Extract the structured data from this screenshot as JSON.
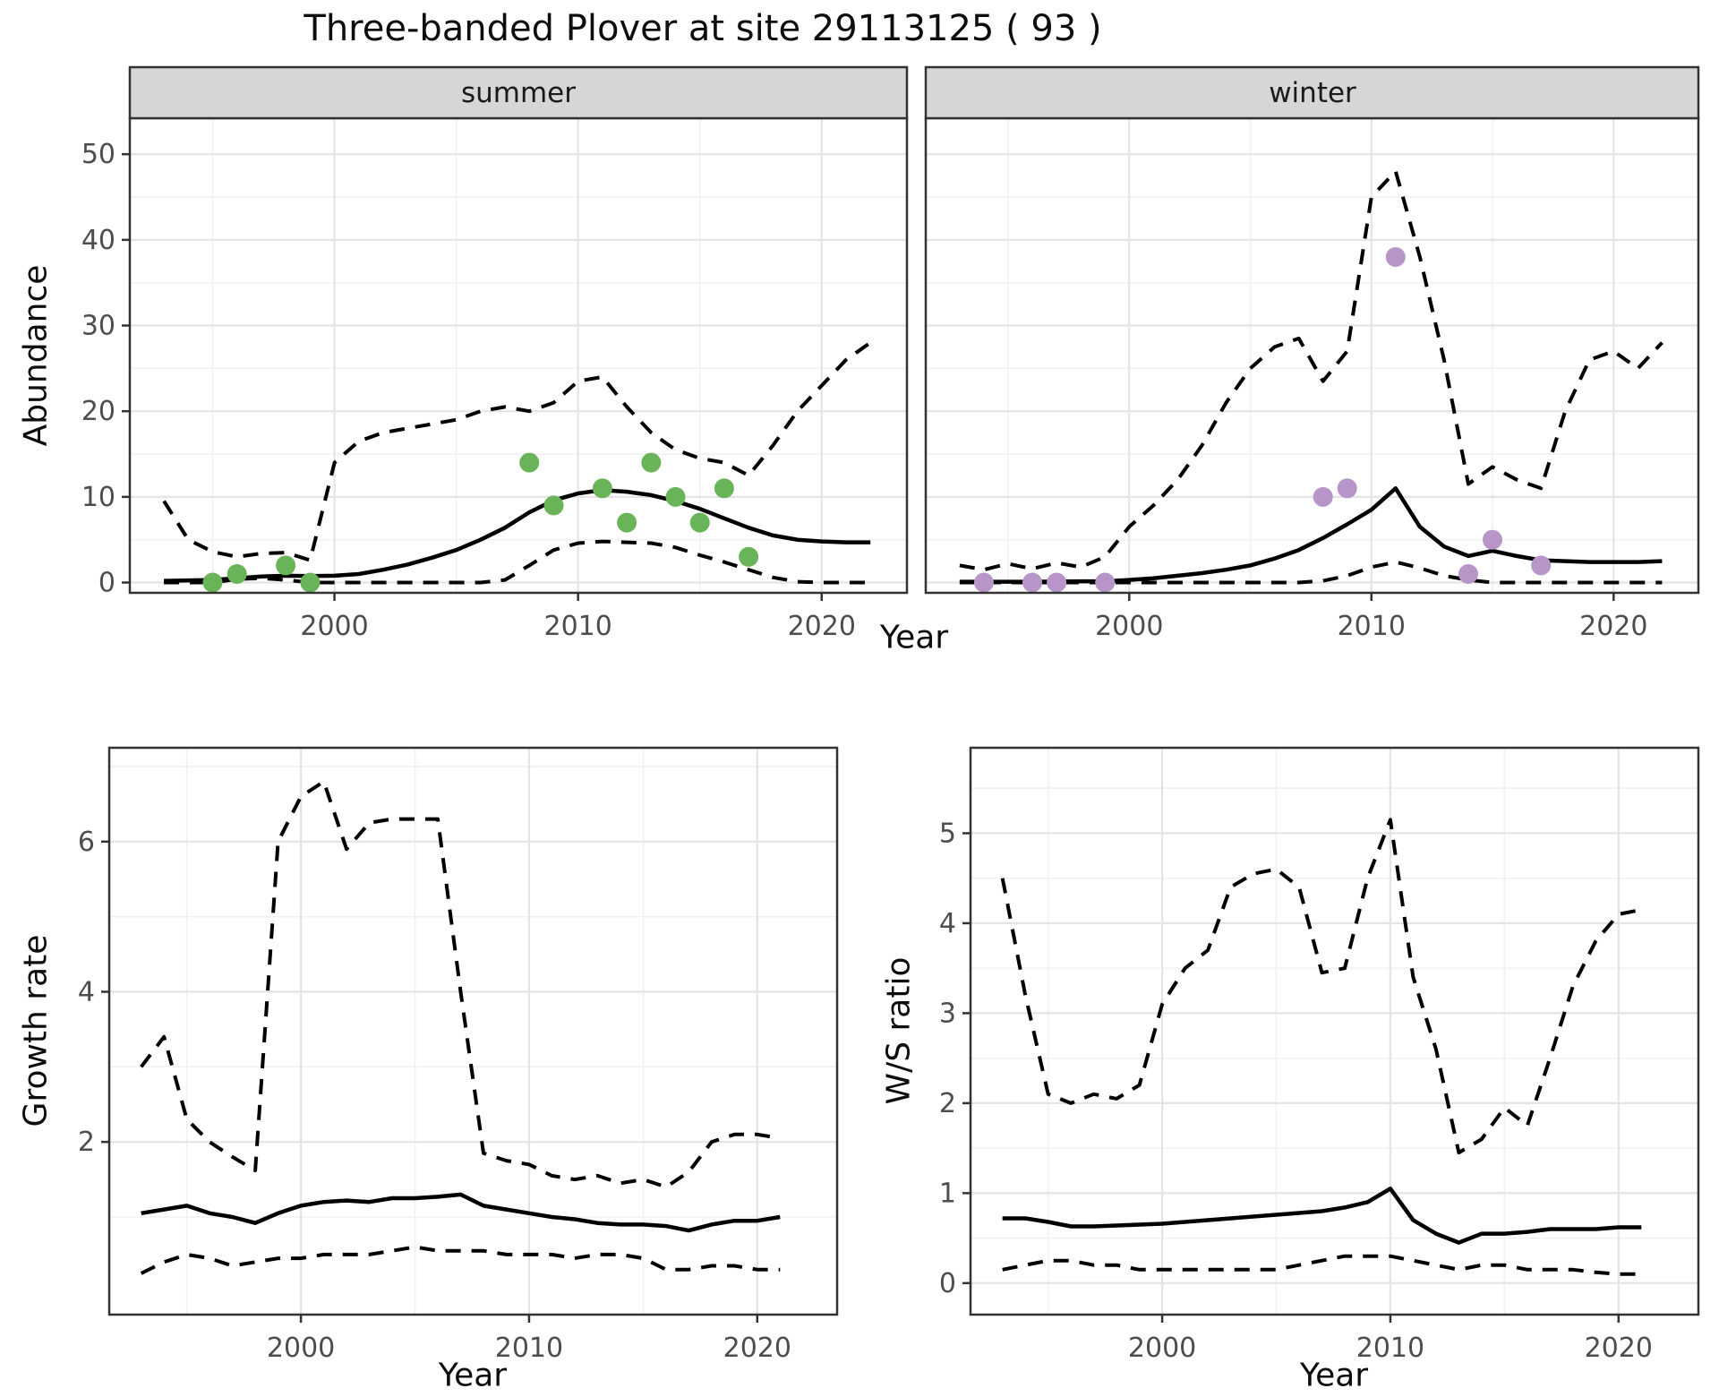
{
  "title": "Three-banded Plover at site 29113125 ( 93 )",
  "colors": {
    "summer_points": "#69b358",
    "winter_points": "#b795c8",
    "line": "#000000",
    "strip_fill": "#d6d6d6",
    "panel_border": "#333333",
    "grid_major": "#e4e4e4",
    "grid_minor": "#f1f1f1",
    "tick_text": "#4d4d4d"
  },
  "chart_data": [
    {
      "type": "line",
      "panel": "summer-abundance",
      "facet_label": "summer",
      "xlabel": "Year",
      "ylabel": "Abundance",
      "xlim": [
        1991.6,
        2023.5
      ],
      "ylim": [
        -1.2,
        54.2
      ],
      "xticks": [
        2000,
        2010,
        2020
      ],
      "yticks": [
        0,
        10,
        20,
        30,
        40,
        50
      ],
      "grid": true,
      "legend": "none",
      "x": [
        1993,
        1994,
        1995,
        1996,
        1997,
        1998,
        1999,
        2000,
        2001,
        2002,
        2003,
        2004,
        2005,
        2006,
        2007,
        2008,
        2009,
        2010,
        2011,
        2012,
        2013,
        2014,
        2015,
        2016,
        2017,
        2018,
        2019,
        2020,
        2021,
        2022
      ],
      "series": [
        {
          "name": "median",
          "style": "solid",
          "values": [
            0.2,
            0.25,
            0.3,
            0.5,
            0.7,
            0.8,
            0.75,
            0.8,
            1.0,
            1.5,
            2.1,
            2.9,
            3.8,
            5.0,
            6.4,
            8.2,
            9.6,
            10.4,
            10.8,
            10.6,
            10.2,
            9.5,
            8.6,
            7.5,
            6.4,
            5.5,
            5.0,
            4.8,
            4.7,
            4.7
          ]
        },
        {
          "name": "upper_ci",
          "style": "dashed",
          "values": [
            9.5,
            5.0,
            3.6,
            3.0,
            3.4,
            3.5,
            2.6,
            14.0,
            16.5,
            17.5,
            18.0,
            18.5,
            19.0,
            20.0,
            20.5,
            20.0,
            21.0,
            23.5,
            24.0,
            20.5,
            17.5,
            15.5,
            14.5,
            14.0,
            12.5,
            16.0,
            20.0,
            23.0,
            26.0,
            28.0
          ]
        },
        {
          "name": "lower_ci",
          "style": "dashed",
          "values": [
            0,
            0,
            0,
            0.4,
            0.5,
            0.3,
            0,
            0,
            0,
            0,
            0,
            0,
            0,
            0,
            0.3,
            2.0,
            3.8,
            4.6,
            4.8,
            4.7,
            4.6,
            4.1,
            3.2,
            2.4,
            1.5,
            0.6,
            0.1,
            0,
            0,
            0
          ]
        }
      ],
      "points": {
        "name": "observed-counts",
        "color": "#69b358",
        "x": [
          1995,
          1996,
          1998,
          1999,
          2008,
          2009,
          2011,
          2012,
          2013,
          2014,
          2015,
          2016,
          2017
        ],
        "y": [
          0,
          1,
          2,
          0,
          14,
          9,
          11,
          7,
          14,
          10,
          7,
          11,
          3
        ]
      }
    },
    {
      "type": "line",
      "panel": "winter-abundance",
      "facet_label": "winter",
      "xlabel": "Year",
      "ylabel": "Abundance",
      "xlim": [
        1991.6,
        2023.5
      ],
      "ylim": [
        -1.2,
        54.2
      ],
      "xticks": [
        2000,
        2010,
        2020
      ],
      "yticks": [
        0,
        10,
        20,
        30,
        40,
        50
      ],
      "grid": true,
      "legend": "none",
      "x": [
        1993,
        1994,
        1995,
        1996,
        1997,
        1998,
        1999,
        2000,
        2001,
        2002,
        2003,
        2004,
        2005,
        2006,
        2007,
        2008,
        2009,
        2010,
        2011,
        2012,
        2013,
        2014,
        2015,
        2016,
        2017,
        2018,
        2019,
        2020,
        2021,
        2022
      ],
      "series": [
        {
          "name": "median",
          "style": "solid",
          "values": [
            0.1,
            0.1,
            0.1,
            0.1,
            0.12,
            0.15,
            0.15,
            0.3,
            0.5,
            0.8,
            1.1,
            1.5,
            2.0,
            2.8,
            3.8,
            5.2,
            6.8,
            8.5,
            11.0,
            6.5,
            4.2,
            3.1,
            3.7,
            3.1,
            2.6,
            2.5,
            2.4,
            2.4,
            2.4,
            2.5
          ]
        },
        {
          "name": "upper_ci",
          "style": "dashed",
          "values": [
            2.0,
            1.5,
            2.2,
            1.6,
            2.3,
            1.8,
            3.0,
            6.5,
            9.0,
            12.0,
            16.0,
            21.0,
            25.0,
            27.5,
            28.5,
            23.5,
            27.0,
            45.0,
            48.0,
            38.0,
            26.0,
            11.5,
            13.5,
            12.0,
            11.0,
            20.0,
            26.0,
            27.0,
            25.0,
            28.0
          ]
        },
        {
          "name": "lower_ci",
          "style": "dashed",
          "values": [
            0,
            0,
            0,
            0,
            0,
            0,
            0,
            0,
            0,
            0,
            0,
            0,
            0,
            0,
            0,
            0.2,
            0.8,
            1.8,
            2.4,
            1.7,
            0.8,
            0.3,
            0,
            0,
            0,
            0,
            0,
            0,
            0,
            0
          ]
        }
      ],
      "points": {
        "name": "observed-counts",
        "color": "#b795c8",
        "x": [
          1994,
          1996,
          1997,
          1999,
          2008,
          2009,
          2011,
          2014,
          2015,
          2017
        ],
        "y": [
          0,
          0,
          0,
          0,
          10,
          11,
          38,
          1,
          5,
          2
        ]
      }
    },
    {
      "type": "line",
      "panel": "growth-rate",
      "facet_label": "",
      "xlabel": "Year",
      "ylabel": "Growth rate",
      "xlim": [
        1991.6,
        2023.5
      ],
      "ylim": [
        -0.3,
        7.25
      ],
      "xticks": [
        2000,
        2010,
        2020
      ],
      "yticks": [
        2,
        4,
        6
      ],
      "grid": true,
      "legend": "none",
      "x": [
        1993,
        1994,
        1995,
        1996,
        1997,
        1998,
        1999,
        2000,
        2001,
        2002,
        2003,
        2004,
        2005,
        2006,
        2007,
        2008,
        2009,
        2010,
        2011,
        2012,
        2013,
        2014,
        2015,
        2016,
        2017,
        2018,
        2019,
        2020,
        2021
      ],
      "series": [
        {
          "name": "median",
          "style": "solid",
          "values": [
            1.05,
            1.1,
            1.15,
            1.05,
            1.0,
            0.92,
            1.05,
            1.15,
            1.2,
            1.22,
            1.2,
            1.25,
            1.25,
            1.27,
            1.3,
            1.15,
            1.1,
            1.05,
            1.0,
            0.97,
            0.92,
            0.9,
            0.9,
            0.88,
            0.82,
            0.9,
            0.95,
            0.95,
            1.0
          ]
        },
        {
          "name": "upper_ci",
          "style": "dashed",
          "values": [
            3.0,
            3.4,
            2.3,
            2.0,
            1.8,
            1.62,
            6.0,
            6.6,
            6.8,
            5.9,
            6.25,
            6.3,
            6.3,
            6.3,
            4.0,
            1.85,
            1.75,
            1.7,
            1.55,
            1.5,
            1.55,
            1.45,
            1.5,
            1.4,
            1.6,
            2.0,
            2.1,
            2.1,
            2.05
          ]
        },
        {
          "name": "lower_ci",
          "style": "dashed",
          "values": [
            0.25,
            0.4,
            0.5,
            0.45,
            0.35,
            0.4,
            0.45,
            0.45,
            0.5,
            0.5,
            0.5,
            0.55,
            0.6,
            0.55,
            0.55,
            0.55,
            0.5,
            0.5,
            0.5,
            0.45,
            0.5,
            0.5,
            0.45,
            0.3,
            0.3,
            0.35,
            0.35,
            0.3,
            0.3
          ]
        }
      ],
      "points": null
    },
    {
      "type": "line",
      "panel": "ws-ratio",
      "facet_label": "",
      "xlabel": "Year",
      "ylabel": "W/S ratio",
      "xlim": [
        1991.6,
        2023.5
      ],
      "ylim": [
        -0.35,
        5.95
      ],
      "xticks": [
        2000,
        2010,
        2020
      ],
      "yticks": [
        0,
        1,
        2,
        3,
        4,
        5
      ],
      "grid": true,
      "legend": "none",
      "x": [
        1993,
        1994,
        1995,
        1996,
        1997,
        1998,
        1999,
        2000,
        2001,
        2002,
        2003,
        2004,
        2005,
        2006,
        2007,
        2008,
        2009,
        2010,
        2011,
        2012,
        2013,
        2014,
        2015,
        2016,
        2017,
        2018,
        2019,
        2020,
        2021
      ],
      "series": [
        {
          "name": "median",
          "style": "solid",
          "values": [
            0.72,
            0.72,
            0.68,
            0.63,
            0.63,
            0.64,
            0.65,
            0.66,
            0.68,
            0.7,
            0.72,
            0.74,
            0.76,
            0.78,
            0.8,
            0.84,
            0.9,
            1.05,
            0.7,
            0.55,
            0.45,
            0.55,
            0.55,
            0.57,
            0.6,
            0.6,
            0.6,
            0.62,
            0.62
          ]
        },
        {
          "name": "upper_ci",
          "style": "dashed",
          "values": [
            4.5,
            3.2,
            2.1,
            2.0,
            2.1,
            2.05,
            2.2,
            3.1,
            3.5,
            3.7,
            4.4,
            4.55,
            4.6,
            4.4,
            3.45,
            3.5,
            4.5,
            5.15,
            3.4,
            2.6,
            1.45,
            1.6,
            1.95,
            1.75,
            2.5,
            3.3,
            3.8,
            4.1,
            4.15
          ]
        },
        {
          "name": "lower_ci",
          "style": "dashed",
          "values": [
            0.15,
            0.2,
            0.25,
            0.25,
            0.2,
            0.2,
            0.15,
            0.15,
            0.15,
            0.15,
            0.15,
            0.15,
            0.15,
            0.2,
            0.25,
            0.3,
            0.3,
            0.3,
            0.25,
            0.2,
            0.15,
            0.2,
            0.2,
            0.15,
            0.15,
            0.15,
            0.12,
            0.1,
            0.1
          ]
        }
      ],
      "points": null
    }
  ]
}
